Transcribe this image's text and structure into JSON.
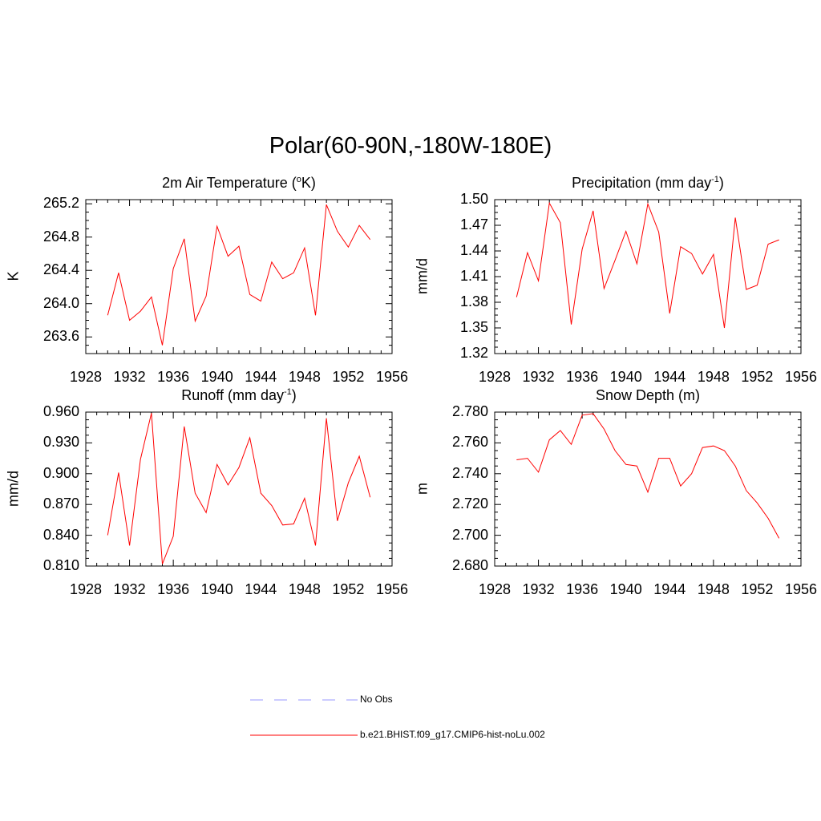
{
  "main_title": "Polar(60-90N,-180W-180E)",
  "colors": {
    "model_line": "#ff0000",
    "obs_line": "#9999ff",
    "axis": "#000000"
  },
  "legend": [
    {
      "label": "No Obs",
      "style": "dashed",
      "color": "#9999ff"
    },
    {
      "label": "b.e21.BHIST.f09_g17.CMIP6-hist-noLu.002",
      "style": "solid",
      "color": "#ff0000"
    }
  ],
  "chart_data": [
    {
      "type": "line",
      "title_pre": "2m Air Temperature (",
      "title_sup": "o",
      "title_post": "K)",
      "xlabel": "",
      "ylabel": "K",
      "xlim": [
        1928,
        1956
      ],
      "ylim": [
        263.4,
        265.25
      ],
      "xticks": [
        "1928",
        "1932",
        "1936",
        "1940",
        "1944",
        "1948",
        "1952",
        "1956"
      ],
      "yticks": [
        "263.6",
        "264.0",
        "264.4",
        "264.8",
        "265.2"
      ],
      "x": [
        1930,
        1931,
        1932,
        1933,
        1934,
        1935,
        1936,
        1937,
        1938,
        1939,
        1940,
        1941,
        1942,
        1943,
        1944,
        1945,
        1946,
        1947,
        1948,
        1949,
        1950,
        1951,
        1952,
        1953,
        1954
      ],
      "series": [
        {
          "values": [
            263.86,
            264.37,
            263.8,
            263.91,
            264.08,
            263.5,
            264.42,
            264.78,
            263.79,
            264.09,
            264.93,
            264.57,
            264.69,
            264.11,
            264.03,
            264.5,
            264.3,
            264.37,
            264.67,
            263.86,
            265.19,
            264.87,
            264.68,
            264.94,
            264.77
          ]
        }
      ]
    },
    {
      "type": "line",
      "title_pre": "Precipitation (mm day",
      "title_sup": "-1",
      "title_post": ")",
      "xlabel": "",
      "ylabel": "mm/d",
      "xlim": [
        1928,
        1956
      ],
      "ylim": [
        1.32,
        1.5
      ],
      "xticks": [
        "1928",
        "1932",
        "1936",
        "1940",
        "1944",
        "1948",
        "1952",
        "1956"
      ],
      "yticks": [
        "1.32",
        "1.35",
        "1.38",
        "1.41",
        "1.44",
        "1.47",
        "1.50"
      ],
      "x": [
        1930,
        1931,
        1932,
        1933,
        1934,
        1935,
        1936,
        1937,
        1938,
        1939,
        1940,
        1941,
        1942,
        1943,
        1944,
        1945,
        1946,
        1947,
        1948,
        1949,
        1950,
        1951,
        1952,
        1953,
        1954
      ],
      "series": [
        {
          "values": [
            1.386,
            1.438,
            1.405,
            1.496,
            1.473,
            1.354,
            1.442,
            1.487,
            1.396,
            1.429,
            1.463,
            1.425,
            1.495,
            1.462,
            1.367,
            1.445,
            1.437,
            1.413,
            1.436,
            1.35,
            1.479,
            1.395,
            1.4,
            1.448,
            1.453
          ]
        }
      ]
    },
    {
      "type": "line",
      "title_pre": "Runoff (mm day",
      "title_sup": "-1",
      "title_post": ")",
      "xlabel": "",
      "ylabel": "mm/d",
      "xlim": [
        1928,
        1956
      ],
      "ylim": [
        0.81,
        0.96
      ],
      "xticks": [
        "1928",
        "1932",
        "1936",
        "1940",
        "1944",
        "1948",
        "1952",
        "1956"
      ],
      "yticks": [
        "0.810",
        "0.840",
        "0.870",
        "0.900",
        "0.930",
        "0.960"
      ],
      "x": [
        1930,
        1931,
        1932,
        1933,
        1934,
        1935,
        1936,
        1937,
        1938,
        1939,
        1940,
        1941,
        1942,
        1943,
        1944,
        1945,
        1946,
        1947,
        1948,
        1949,
        1950,
        1951,
        1952,
        1953,
        1954
      ],
      "series": [
        {
          "values": [
            0.84,
            0.901,
            0.83,
            0.914,
            0.959,
            0.812,
            0.839,
            0.946,
            0.881,
            0.862,
            0.909,
            0.889,
            0.906,
            0.935,
            0.881,
            0.869,
            0.85,
            0.851,
            0.876,
            0.83,
            0.954,
            0.854,
            0.891,
            0.917,
            0.877
          ]
        }
      ]
    },
    {
      "type": "line",
      "title_pre": "Snow Depth (m)",
      "title_sup": "",
      "title_post": "",
      "xlabel": "",
      "ylabel": "m",
      "xlim": [
        1928,
        1956
      ],
      "ylim": [
        2.68,
        2.78
      ],
      "xticks": [
        "1928",
        "1932",
        "1936",
        "1940",
        "1944",
        "1948",
        "1952",
        "1956"
      ],
      "yticks": [
        "2.680",
        "2.700",
        "2.720",
        "2.740",
        "2.760",
        "2.780"
      ],
      "x": [
        1930,
        1931,
        1932,
        1933,
        1934,
        1935,
        1936,
        1937,
        1938,
        1939,
        1940,
        1941,
        1942,
        1943,
        1944,
        1945,
        1946,
        1947,
        1948,
        1949,
        1950,
        1951,
        1952,
        1953,
        1954
      ],
      "series": [
        {
          "values": [
            2.749,
            2.75,
            2.741,
            2.762,
            2.768,
            2.759,
            2.778,
            2.779,
            2.769,
            2.755,
            2.746,
            2.745,
            2.728,
            2.75,
            2.75,
            2.732,
            2.74,
            2.757,
            2.758,
            2.755,
            2.745,
            2.729,
            2.721,
            2.711,
            2.698
          ]
        }
      ]
    }
  ]
}
